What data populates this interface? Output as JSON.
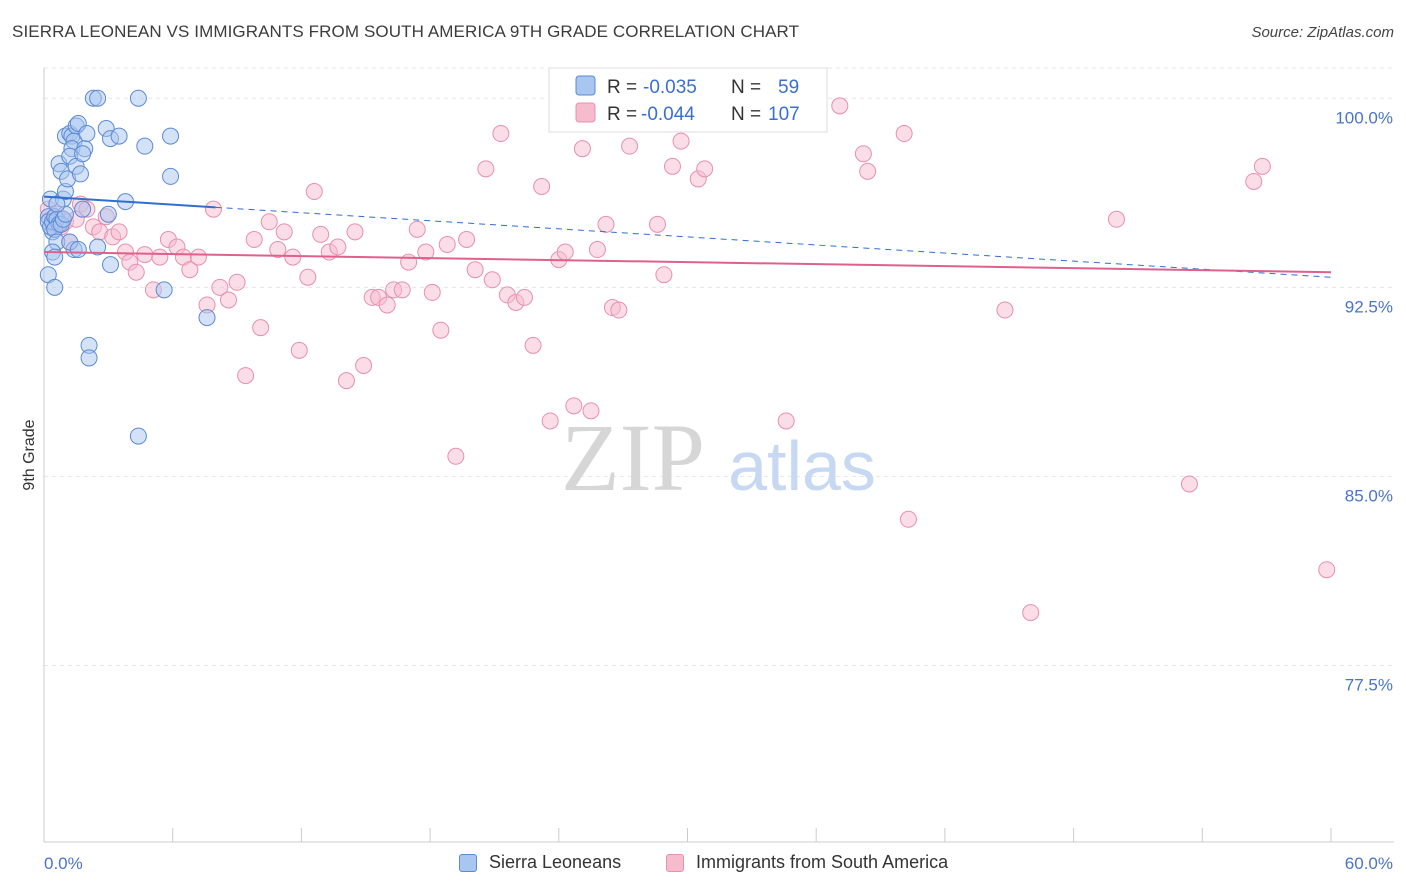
{
  "title": "SIERRA LEONEAN VS IMMIGRANTS FROM SOUTH AMERICA 9TH GRADE CORRELATION CHART",
  "source": "Source: ZipAtlas.com",
  "watermark": {
    "zip": "ZIP",
    "atlas": "atlas"
  },
  "colors": {
    "blue_fill": "#a9c6f0",
    "blue_stroke": "#5b8ad6",
    "blue_line": "#2f6fd0",
    "pink_fill": "#f6bccd",
    "pink_stroke": "#e890ac",
    "pink_line": "#e0608c",
    "axis_text": "#4a74c9"
  },
  "legend": {
    "rows": [
      {
        "r_label": "R = ",
        "r_value": "-0.035",
        "n_label": "N = ",
        "n_value": "59"
      },
      {
        "r_label": "R = ",
        "r_value": "-0.044",
        "n_label": "N = ",
        "n_value": "107"
      }
    ]
  },
  "bottom_legend": [
    "Sierra Leoneans",
    "Immigrants from South America"
  ],
  "chart_data": {
    "type": "scatter",
    "title": "SIERRA LEONEAN VS IMMIGRANTS FROM SOUTH AMERICA 9TH GRADE CORRELATION CHART",
    "xlabel": "",
    "ylabel": "9th Grade",
    "xlim": [
      0,
      60
    ],
    "ylim": [
      70.5,
      101.2
    ],
    "x_tick_labels": [
      "0.0%",
      "60.0%"
    ],
    "y_ticks": [
      77.5,
      85.0,
      92.5,
      100.0
    ],
    "y_tick_labels": [
      "77.5%",
      "85.0%",
      "92.5%",
      "100.0%"
    ],
    "grid": true,
    "series": [
      {
        "name": "Sierra Leoneans",
        "R": -0.035,
        "N": 59,
        "trend": {
          "x0": 0,
          "y0": 96.1,
          "x1": 60,
          "y1": 92.9,
          "solid_until": 8
        },
        "points": [
          [
            0.3,
            96.0
          ],
          [
            0.2,
            95.3
          ],
          [
            0.2,
            95.1
          ],
          [
            0.4,
            94.7
          ],
          [
            0.3,
            94.9
          ],
          [
            0.4,
            95.1
          ],
          [
            0.5,
            95.3
          ],
          [
            0.6,
            95.2
          ],
          [
            0.7,
            95.0
          ],
          [
            0.5,
            94.8
          ],
          [
            0.8,
            95.0
          ],
          [
            0.9,
            95.2
          ],
          [
            0.6,
            94.3
          ],
          [
            0.4,
            93.9
          ],
          [
            0.5,
            93.7
          ],
          [
            0.2,
            93.0
          ],
          [
            0.5,
            92.5
          ],
          [
            0.7,
            97.4
          ],
          [
            0.8,
            97.1
          ],
          [
            0.9,
            96.0
          ],
          [
            1.0,
            96.3
          ],
          [
            1.1,
            96.8
          ],
          [
            1.0,
            98.5
          ],
          [
            1.2,
            98.6
          ],
          [
            1.3,
            98.5
          ],
          [
            1.5,
            98.9
          ],
          [
            1.6,
            99.0
          ],
          [
            1.4,
            98.3
          ],
          [
            1.3,
            98.0
          ],
          [
            1.2,
            97.7
          ],
          [
            1.5,
            97.3
          ],
          [
            1.7,
            97.0
          ],
          [
            1.9,
            98.0
          ],
          [
            2.0,
            98.6
          ],
          [
            1.8,
            97.8
          ],
          [
            2.3,
            100.0
          ],
          [
            2.5,
            100.0
          ],
          [
            2.9,
            98.8
          ],
          [
            3.1,
            98.4
          ],
          [
            3.5,
            98.5
          ],
          [
            4.4,
            100.0
          ],
          [
            4.7,
            98.1
          ],
          [
            5.9,
            98.5
          ],
          [
            5.9,
            96.9
          ],
          [
            3.8,
            95.9
          ],
          [
            3.0,
            95.4
          ],
          [
            2.5,
            94.1
          ],
          [
            1.4,
            94.0
          ],
          [
            1.2,
            94.3
          ],
          [
            1.6,
            94.0
          ],
          [
            3.1,
            93.4
          ],
          [
            5.6,
            92.4
          ],
          [
            7.6,
            91.3
          ],
          [
            2.1,
            90.2
          ],
          [
            2.1,
            89.7
          ],
          [
            4.4,
            86.6
          ],
          [
            1.0,
            95.4
          ],
          [
            0.6,
            95.8
          ],
          [
            1.8,
            95.6
          ]
        ]
      },
      {
        "name": "Immigrants from South America",
        "R": -0.044,
        "N": 107,
        "trend": {
          "x0": 0,
          "y0": 93.9,
          "x1": 60,
          "y1": 93.1
        },
        "points": [
          [
            0.2,
            95.6
          ],
          [
            0.3,
            95.2
          ],
          [
            0.4,
            95.0
          ],
          [
            0.5,
            94.8
          ],
          [
            0.6,
            95.4
          ],
          [
            0.8,
            94.9
          ],
          [
            1.0,
            95.1
          ],
          [
            1.2,
            94.3
          ],
          [
            1.5,
            95.2
          ],
          [
            1.7,
            95.8
          ],
          [
            2.0,
            95.6
          ],
          [
            2.3,
            94.9
          ],
          [
            2.6,
            94.7
          ],
          [
            2.9,
            95.3
          ],
          [
            3.2,
            94.5
          ],
          [
            3.5,
            94.7
          ],
          [
            3.8,
            93.9
          ],
          [
            4.0,
            93.5
          ],
          [
            4.3,
            93.1
          ],
          [
            4.7,
            93.8
          ],
          [
            5.1,
            92.4
          ],
          [
            5.4,
            93.7
          ],
          [
            5.8,
            94.4
          ],
          [
            6.2,
            94.1
          ],
          [
            6.5,
            93.7
          ],
          [
            6.8,
            93.2
          ],
          [
            7.2,
            93.7
          ],
          [
            7.6,
            91.8
          ],
          [
            7.9,
            95.6
          ],
          [
            8.2,
            92.5
          ],
          [
            8.6,
            92.0
          ],
          [
            9.0,
            92.7
          ],
          [
            9.4,
            89.0
          ],
          [
            9.8,
            94.4
          ],
          [
            10.1,
            90.9
          ],
          [
            10.5,
            95.1
          ],
          [
            10.9,
            94.0
          ],
          [
            11.2,
            94.7
          ],
          [
            11.6,
            93.7
          ],
          [
            11.9,
            90.0
          ],
          [
            12.3,
            92.9
          ],
          [
            12.6,
            96.3
          ],
          [
            12.9,
            94.6
          ],
          [
            13.3,
            93.9
          ],
          [
            13.7,
            94.1
          ],
          [
            14.1,
            88.8
          ],
          [
            14.5,
            94.7
          ],
          [
            14.9,
            89.4
          ],
          [
            15.3,
            92.1
          ],
          [
            15.6,
            92.1
          ],
          [
            16.0,
            91.8
          ],
          [
            16.3,
            92.4
          ],
          [
            16.7,
            92.4
          ],
          [
            17.0,
            93.5
          ],
          [
            17.4,
            94.8
          ],
          [
            17.8,
            93.9
          ],
          [
            18.1,
            92.3
          ],
          [
            18.5,
            90.8
          ],
          [
            18.8,
            94.2
          ],
          [
            19.2,
            85.8
          ],
          [
            19.7,
            94.4
          ],
          [
            20.1,
            93.2
          ],
          [
            20.6,
            97.2
          ],
          [
            20.9,
            92.8
          ],
          [
            21.3,
            98.6
          ],
          [
            21.6,
            92.2
          ],
          [
            22.0,
            91.9
          ],
          [
            22.4,
            92.1
          ],
          [
            22.8,
            90.2
          ],
          [
            23.2,
            96.5
          ],
          [
            23.6,
            87.2
          ],
          [
            24.0,
            93.6
          ],
          [
            24.3,
            93.9
          ],
          [
            24.7,
            87.8
          ],
          [
            25.1,
            98.0
          ],
          [
            25.5,
            87.6
          ],
          [
            25.8,
            94.0
          ],
          [
            26.2,
            95.0
          ],
          [
            26.5,
            91.7
          ],
          [
            26.8,
            91.6
          ],
          [
            27.3,
            98.1
          ],
          [
            27.7,
            100.0
          ],
          [
            28.2,
            99.0
          ],
          [
            28.6,
            95.0
          ],
          [
            28.9,
            93.0
          ],
          [
            29.3,
            97.3
          ],
          [
            29.7,
            98.3
          ],
          [
            30.2,
            100.0
          ],
          [
            30.5,
            96.8
          ],
          [
            30.8,
            97.2
          ],
          [
            31.3,
            99.0
          ],
          [
            34.6,
            87.2
          ],
          [
            35.2,
            99.4
          ],
          [
            36.0,
            100.0
          ],
          [
            37.1,
            99.7
          ],
          [
            38.2,
            97.8
          ],
          [
            38.4,
            97.1
          ],
          [
            40.1,
            98.6
          ],
          [
            40.3,
            83.3
          ],
          [
            44.8,
            91.6
          ],
          [
            46.0,
            79.6
          ],
          [
            50.0,
            95.2
          ],
          [
            53.4,
            84.7
          ],
          [
            56.4,
            96.7
          ],
          [
            56.8,
            97.3
          ],
          [
            59.8,
            81.3
          ],
          [
            31.5,
            99.2
          ]
        ]
      }
    ]
  }
}
